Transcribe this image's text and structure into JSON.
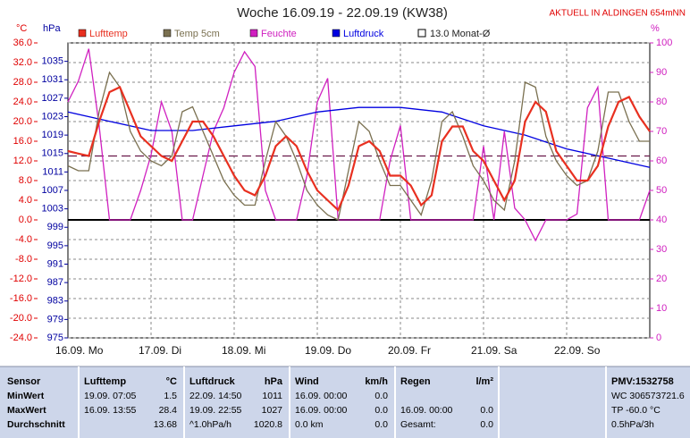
{
  "chart_data": {
    "type": "line",
    "title": "Woche 16.09.19 - 22.09.19 (KW38)",
    "subtitle": "AKTUELL IN ALDINGEN 654mNN",
    "ylabel": "°C",
    "y3label": "hPa",
    "y2label": "%",
    "xlim": [
      0,
      168
    ],
    "xticks": [
      {
        "value": 0,
        "label": "16.09.  Mo"
      },
      {
        "value": 24,
        "label": "17.09.  Di"
      },
      {
        "value": 48,
        "label": "18.09.  Mi"
      },
      {
        "value": 72,
        "label": "19.09.  Do"
      },
      {
        "value": 96,
        "label": "20.09.  Fr"
      },
      {
        "value": 120,
        "label": "21.09.  Sa"
      },
      {
        "value": 144,
        "label": "22.09.  So"
      }
    ],
    "ylim": [
      -24,
      36
    ],
    "yticks": [
      {
        "value": 36,
        "label": "36.0"
      },
      {
        "value": 32,
        "label": "32.0"
      },
      {
        "value": 28,
        "label": "28.0"
      },
      {
        "value": 24,
        "label": "24.0"
      },
      {
        "value": 20,
        "label": "20.0"
      },
      {
        "value": 16,
        "label": "16.0"
      },
      {
        "value": 12,
        "label": "12.0"
      },
      {
        "value": 8,
        "label": "8.0"
      },
      {
        "value": 4,
        "label": "4.0"
      },
      {
        "value": 0,
        "label": "0.0"
      },
      {
        "value": -4,
        "label": "-4.0"
      },
      {
        "value": -8,
        "label": "-8.0"
      },
      {
        "value": -12,
        "label": "-12.0"
      },
      {
        "value": -16,
        "label": "-16.0"
      },
      {
        "value": -20,
        "label": "-20.0"
      },
      {
        "value": -24,
        "label": "-24.0"
      }
    ],
    "y3lim": [
      975,
      1039
    ],
    "y3ticks": [
      1035,
      1031,
      1027,
      1023,
      1019,
      1015,
      1011,
      1007,
      1003,
      999,
      995,
      991,
      987,
      983,
      979,
      975
    ],
    "y2lim": [
      0,
      100
    ],
    "y2ticks": [
      100,
      90,
      80,
      70,
      60,
      50,
      40,
      30,
      20,
      10,
      0
    ],
    "grid": true,
    "x": [
      0,
      3,
      6,
      9,
      12,
      15,
      18,
      21,
      24,
      27,
      30,
      33,
      36,
      39,
      42,
      45,
      48,
      51,
      54,
      57,
      60,
      63,
      66,
      69,
      72,
      75,
      78,
      81,
      84,
      87,
      90,
      93,
      96,
      99,
      102,
      105,
      108,
      111,
      114,
      117,
      120,
      123,
      126,
      129,
      132,
      135,
      138,
      141,
      144,
      147,
      150,
      153,
      156,
      159,
      162,
      165,
      168
    ],
    "series": [
      {
        "name": "Lufttemp",
        "color": "#e83020",
        "axis": "y",
        "values": [
          14,
          13.5,
          13,
          20,
          26,
          27,
          22,
          17,
          15,
          13,
          12,
          16,
          20,
          20,
          17,
          13,
          9,
          6,
          5,
          9,
          15,
          17,
          15,
          10,
          6,
          4,
          2,
          7,
          15,
          16,
          14,
          9,
          9,
          7,
          3,
          5,
          16,
          19,
          19,
          14,
          12,
          8,
          4,
          8,
          20,
          24,
          22,
          14,
          11,
          8,
          8,
          11,
          19,
          24,
          25,
          21,
          18
        ]
      },
      {
        "name": "Temp 5cm",
        "color": "#7a7050",
        "axis": "y",
        "values": [
          11,
          10,
          10,
          22,
          30,
          27,
          18,
          14,
          12,
          11,
          13,
          22,
          23,
          18,
          13,
          8,
          5,
          3,
          3,
          12,
          20,
          17,
          12,
          6,
          3,
          1,
          0,
          10,
          20,
          18,
          12,
          7,
          7,
          4,
          1,
          8,
          20,
          22,
          17,
          11,
          8,
          4,
          2,
          12,
          28,
          27,
          17,
          12,
          9,
          7,
          8,
          14,
          26,
          26,
          20,
          16,
          16
        ]
      },
      {
        "name": "Feuchte",
        "color": "#d020c0",
        "axis": "y2",
        "values": [
          80,
          87,
          98,
          72,
          40,
          40,
          40,
          50,
          62,
          80,
          70,
          40,
          40,
          55,
          70,
          78,
          90,
          97,
          92,
          50,
          40,
          40,
          40,
          55,
          80,
          88,
          40,
          40,
          40,
          40,
          40,
          60,
          72,
          40,
          40,
          40,
          40,
          40,
          40,
          40,
          65,
          40,
          70,
          44,
          40,
          33,
          40,
          40,
          40,
          42,
          78,
          85,
          40,
          40,
          40,
          40,
          50
        ]
      },
      {
        "name": "Luftdruck",
        "color": "#0000e0",
        "axis": "y3",
        "x": [
          0,
          12,
          24,
          36,
          48,
          60,
          72,
          84,
          96,
          108,
          120,
          132,
          144,
          156,
          168
        ],
        "values": [
          1024,
          1022,
          1020,
          1020,
          1021,
          1022,
          1024,
          1025,
          1025,
          1024,
          1021,
          1019,
          1016,
          1014,
          1012
        ]
      }
    ],
    "reference": {
      "name": "13.0 Monat-Ø",
      "value": 13,
      "color": "#6a1a4a"
    }
  },
  "table": {
    "header": [
      "Sensor",
      "Lufttemp",
      "°C",
      "Luftdruck",
      "hPa",
      "Wind",
      "km/h",
      "Regen",
      "l/m²",
      "PMV:1532758"
    ],
    "rows": [
      [
        "MinWert",
        "19.09.  07:05",
        "1.5",
        "22.09.  14:50",
        "1011",
        "16.09.  00:00",
        "0.0",
        null,
        null,
        "WC 306573721.6"
      ],
      [
        "MaxWert",
        "16.09.  13:55",
        "28.4",
        "19.09.  22:55",
        "1027",
        "16.09.  00:00",
        "0.0",
        "16.09.  00:00",
        "0.0",
        "TP -60.0 °C"
      ],
      [
        "Durchschnitt",
        null,
        "13.68",
        "^1.0hPa/h",
        "1020.8",
        "0.0 km",
        "0.0",
        "Gesamt:",
        "0.0",
        "0.5hPa/3h"
      ]
    ]
  }
}
